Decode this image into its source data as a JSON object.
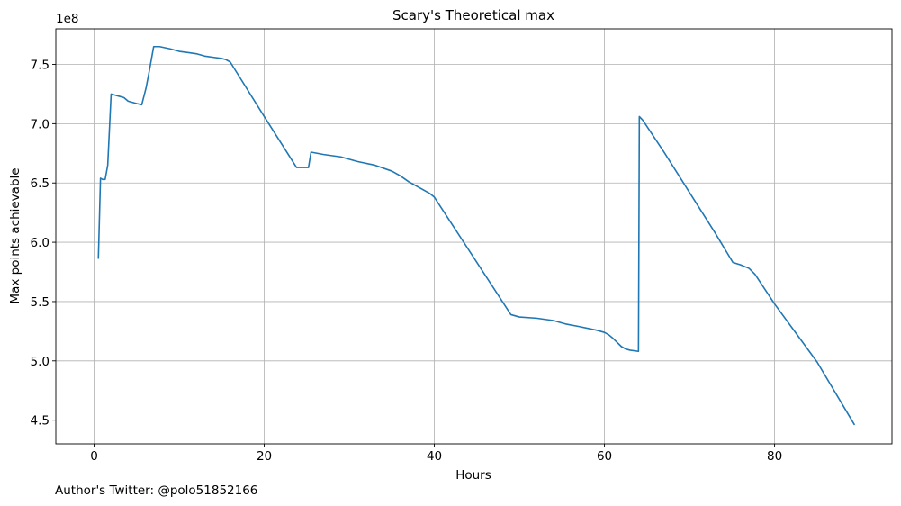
{
  "chart_data": {
    "type": "line",
    "title": "Scary's Theoretical max",
    "xlabel": "Hours",
    "ylabel": "Max points achievable",
    "y_offset_label": "1e8",
    "xlim": [
      -4.5,
      93.8
    ],
    "ylim": [
      430000000.0,
      780000000.0
    ],
    "x_ticks": [
      0,
      20,
      40,
      60,
      80
    ],
    "x_tick_labels": [
      "0",
      "20",
      "40",
      "60",
      "80"
    ],
    "y_ticks": [
      450000000.0,
      500000000.0,
      550000000.0,
      600000000.0,
      650000000.0,
      700000000.0,
      750000000.0
    ],
    "y_tick_labels": [
      "4.5",
      "5.0",
      "5.5",
      "6.0",
      "6.5",
      "7.0",
      "7.5"
    ],
    "grid": true,
    "series": [
      {
        "color": "#1f77b4",
        "x": [
          0.5,
          0.75,
          1.0,
          1.3,
          1.6,
          2.0,
          3.0,
          3.5,
          4.0,
          5.0,
          5.6,
          6.1,
          6.5,
          7.0,
          7.7,
          9.0,
          10.0,
          11.0,
          12.0,
          13.0,
          14.0,
          15.0,
          15.5,
          16.0,
          20.0,
          23.8,
          24.5,
          25.2,
          25.5,
          27.0,
          29.0,
          31.0,
          33.0,
          35.0,
          36.0,
          37.0,
          38.0,
          39.0,
          39.5,
          40.0,
          49.0,
          50.0,
          52.0,
          54.0,
          55.5,
          57.0,
          59.0,
          60.0,
          60.5,
          61.0,
          62.0,
          62.5,
          63.0,
          64.0,
          64.1,
          64.5,
          67.0,
          70.0,
          73.0,
          75.1,
          76.0,
          77.0,
          77.7,
          80.0,
          85.0,
          89.4
        ],
        "y": [
          586000000.0,
          654000000.0,
          653000000.0,
          653000000.0,
          665000000.0,
          725000000.0,
          723000000.0,
          722000000.0,
          719000000.0,
          717000000.0,
          716000000.0,
          730000000.0,
          745000000.0,
          765000000.0,
          765000000.0,
          763000000.0,
          761000000.0,
          760000000.0,
          759000000.0,
          757000000.0,
          756000000.0,
          755000000.0,
          754000000.0,
          752000000.0,
          706000000.0,
          663000000.0,
          663000000.0,
          663000000.0,
          676000000.0,
          674000000.0,
          672000000.0,
          668000000.0,
          665000000.0,
          660000000.0,
          656000000.0,
          651000000.0,
          647000000.0,
          643000000.0,
          641000000.0,
          638000000.0,
          539000000.0,
          537000000.0,
          536000000.0,
          534000000.0,
          531000000.0,
          529000000.0,
          526000000.0,
          524000000.0,
          522000000.0,
          519000000.0,
          512000000.0,
          510000000.0,
          509000000.0,
          508000000.0,
          706000000.0,
          703000000.0,
          676000000.0,
          642000000.0,
          608000000.0,
          583000000.0,
          581000000.0,
          578000000.0,
          573000000.0,
          548000000.0,
          499000000.0,
          446000000.0
        ]
      }
    ]
  },
  "footer": {
    "note": "Author's Twitter: @polo51852166"
  }
}
